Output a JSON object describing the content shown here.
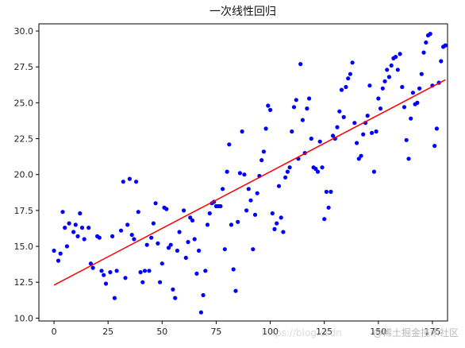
{
  "chart_data": {
    "type": "scatter",
    "title": "一次线性回归",
    "xlabel": "",
    "ylabel": "",
    "xlim": [
      -7,
      182
    ],
    "ylim": [
      9.8,
      30.5
    ],
    "xticks": [
      0,
      25,
      50,
      75,
      100,
      125,
      150,
      175
    ],
    "xtick_labels": [
      "0",
      "25",
      "50",
      "75",
      "100",
      "125",
      "150",
      "175"
    ],
    "yticks": [
      10.0,
      12.5,
      15.0,
      17.5,
      20.0,
      22.5,
      25.0,
      27.5,
      30.0
    ],
    "ytick_labels": [
      "10.0",
      "12.5",
      "15.0",
      "17.5",
      "20.0",
      "22.5",
      "25.0",
      "27.5",
      "30.0"
    ],
    "grid": false,
    "points": [
      [
        0,
        14.7
      ],
      [
        2,
        14.0
      ],
      [
        3,
        14.5
      ],
      [
        4,
        17.4
      ],
      [
        5,
        16.3
      ],
      [
        6,
        15.0
      ],
      [
        7,
        16.6
      ],
      [
        9,
        16.0
      ],
      [
        10,
        16.5
      ],
      [
        11,
        15.7
      ],
      [
        12,
        17.3
      ],
      [
        13,
        16.3
      ],
      [
        14,
        15.5
      ],
      [
        16,
        16.3
      ],
      [
        17,
        13.8
      ],
      [
        18,
        13.5
      ],
      [
        20,
        15.7
      ],
      [
        21,
        15.6
      ],
      [
        22,
        13.3
      ],
      [
        23,
        13.0
      ],
      [
        24,
        12.4
      ],
      [
        26,
        13.2
      ],
      [
        27,
        15.7
      ],
      [
        28,
        11.4
      ],
      [
        29,
        13.3
      ],
      [
        31,
        16.1
      ],
      [
        32,
        19.5
      ],
      [
        33,
        12.8
      ],
      [
        34,
        16.5
      ],
      [
        35,
        19.7
      ],
      [
        36,
        15.8
      ],
      [
        37,
        15.5
      ],
      [
        38,
        19.5
      ],
      [
        39,
        17.4
      ],
      [
        40,
        13.2
      ],
      [
        41,
        12.5
      ],
      [
        42,
        13.3
      ],
      [
        43,
        15.1
      ],
      [
        44,
        13.3
      ],
      [
        45,
        15.6
      ],
      [
        46,
        16.6
      ],
      [
        47,
        18.0
      ],
      [
        48,
        15.2
      ],
      [
        49,
        12.5
      ],
      [
        50,
        13.8
      ],
      [
        51,
        17.7
      ],
      [
        52,
        17.6
      ],
      [
        53,
        14.9
      ],
      [
        54,
        15.1
      ],
      [
        55,
        12.0
      ],
      [
        56,
        11.4
      ],
      [
        57,
        14.7
      ],
      [
        58,
        16.0
      ],
      [
        60,
        17.5
      ],
      [
        61,
        14.2
      ],
      [
        62,
        15.3
      ],
      [
        63,
        17.0
      ],
      [
        64,
        16.8
      ],
      [
        65,
        15.5
      ],
      [
        66,
        13.1
      ],
      [
        67,
        14.7
      ],
      [
        68,
        10.4
      ],
      [
        69,
        11.6
      ],
      [
        70,
        13.3
      ],
      [
        71,
        16.5
      ],
      [
        72,
        17.3
      ],
      [
        73,
        18.0
      ],
      [
        74,
        18.1
      ],
      [
        75,
        17.8
      ],
      [
        76,
        17.8
      ],
      [
        77,
        17.8
      ],
      [
        78,
        19.0
      ],
      [
        79,
        14.8
      ],
      [
        80,
        20.2
      ],
      [
        81,
        22.1
      ],
      [
        82,
        16.5
      ],
      [
        83,
        13.4
      ],
      [
        84,
        11.9
      ],
      [
        85,
        16.7
      ],
      [
        86,
        20.1
      ],
      [
        87,
        23.0
      ],
      [
        88,
        20.0
      ],
      [
        89,
        17.5
      ],
      [
        90,
        19.0
      ],
      [
        91,
        18.2
      ],
      [
        92,
        14.8
      ],
      [
        93,
        17.2
      ],
      [
        94,
        18.7
      ],
      [
        95,
        19.9
      ],
      [
        96,
        21.0
      ],
      [
        97,
        21.6
      ],
      [
        98,
        23.2
      ],
      [
        99,
        24.8
      ],
      [
        100,
        24.5
      ],
      [
        101,
        17.3
      ],
      [
        102,
        16.2
      ],
      [
        103,
        16.6
      ],
      [
        104,
        19.2
      ],
      [
        105,
        17.0
      ],
      [
        106,
        16.0
      ],
      [
        107,
        19.8
      ],
      [
        108,
        20.2
      ],
      [
        109,
        20.5
      ],
      [
        110,
        23.0
      ],
      [
        111,
        24.7
      ],
      [
        112,
        25.2
      ],
      [
        113,
        21.1
      ],
      [
        114,
        27.7
      ],
      [
        115,
        23.8
      ],
      [
        116,
        21.5
      ],
      [
        117,
        24.6
      ],
      [
        118,
        25.3
      ],
      [
        119,
        22.5
      ],
      [
        120,
        20.5
      ],
      [
        121,
        20.4
      ],
      [
        122,
        20.2
      ],
      [
        123,
        22.3
      ],
      [
        124,
        20.5
      ],
      [
        125,
        16.9
      ],
      [
        126,
        18.8
      ],
      [
        127,
        17.7
      ],
      [
        128,
        18.8
      ],
      [
        129,
        22.7
      ],
      [
        130,
        22.5
      ],
      [
        131,
        23.3
      ],
      [
        132,
        24.4
      ],
      [
        133,
        25.9
      ],
      [
        134,
        24.0
      ],
      [
        135,
        26.1
      ],
      [
        136,
        26.7
      ],
      [
        137,
        27.0
      ],
      [
        138,
        27.8
      ],
      [
        139,
        23.6
      ],
      [
        140,
        22.2
      ],
      [
        141,
        21.1
      ],
      [
        142,
        21.3
      ],
      [
        143,
        22.8
      ],
      [
        144,
        23.6
      ],
      [
        145,
        24.1
      ],
      [
        146,
        26.2
      ],
      [
        147,
        22.9
      ],
      [
        148,
        20.2
      ],
      [
        149,
        23.0
      ],
      [
        150,
        25.3
      ],
      [
        151,
        24.6
      ],
      [
        152,
        26.0
      ],
      [
        153,
        26.5
      ],
      [
        154,
        27.3
      ],
      [
        155,
        26.8
      ],
      [
        156,
        27.6
      ],
      [
        157,
        28.1
      ],
      [
        158,
        28.2
      ],
      [
        159,
        27.3
      ],
      [
        160,
        28.4
      ],
      [
        161,
        26.1
      ],
      [
        162,
        24.7
      ],
      [
        163,
        22.4
      ],
      [
        164,
        21.1
      ],
      [
        165,
        23.9
      ],
      [
        166,
        25.7
      ],
      [
        167,
        24.9
      ],
      [
        168,
        25.0
      ],
      [
        169,
        26.0
      ],
      [
        170,
        27.0
      ],
      [
        171,
        28.5
      ],
      [
        172,
        29.2
      ],
      [
        173,
        29.7
      ],
      [
        174,
        29.8
      ],
      [
        175,
        26.2
      ],
      [
        176,
        22.0
      ],
      [
        177,
        23.2
      ],
      [
        178,
        26.4
      ],
      [
        179,
        27.9
      ],
      [
        180,
        28.9
      ],
      [
        181,
        29.0
      ]
    ],
    "fit_line": {
      "x": [
        0,
        181
      ],
      "y": [
        12.3,
        26.6
      ]
    },
    "point_color": "#0000ff",
    "line_color": "#ff0000"
  },
  "watermark": "@稀土掘金技术社区",
  "watermark_faint": "https://blog.csdn"
}
